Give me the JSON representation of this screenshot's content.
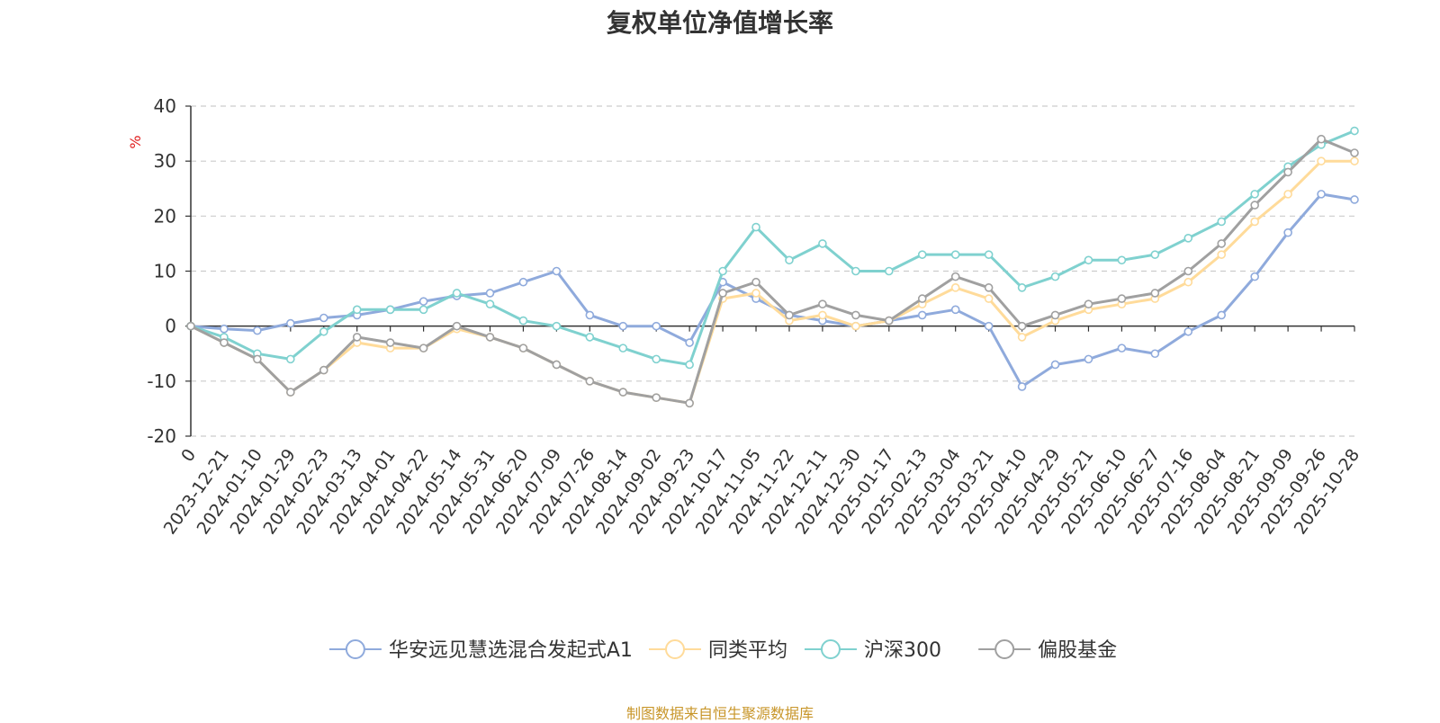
{
  "source_note": "制图数据来自恒生聚源数据库",
  "chart_data": {
    "type": "line",
    "title": "复权单位净值增长率",
    "ylabel": "%",
    "ylabel_color": "#e02020",
    "ylim": [
      -20,
      40
    ],
    "yticks": [
      -20,
      -10,
      0,
      10,
      20,
      30,
      40
    ],
    "grid": true,
    "legend_position": "bottom",
    "x_ticks": [
      "0",
      "2023-12-21",
      "2024-01-10",
      "2024-01-29",
      "2024-02-23",
      "2024-03-13",
      "2024-04-01",
      "2024-04-22",
      "2024-05-14",
      "2024-05-31",
      "2024-06-20",
      "2024-07-09",
      "2024-07-26",
      "2024-08-14",
      "2024-09-02",
      "2024-09-23",
      "2024-10-17",
      "2024-11-05",
      "2024-11-22",
      "2024-12-11",
      "2024-12-30",
      "2025-01-17",
      "2025-02-13",
      "2025-03-04",
      "2025-03-21",
      "2025-04-10",
      "2025-04-29",
      "2025-05-21",
      "2025-06-10",
      "2025-06-27",
      "2025-07-16",
      "2025-08-04",
      "2025-08-21",
      "2025-09-09",
      "2025-09-26",
      "2025-10-28"
    ],
    "series": [
      {
        "name": "华安远见慧选混合发起式A1",
        "color": "#8faadc",
        "values": [
          0,
          -0.5,
          -0.8,
          0.5,
          1.5,
          2,
          3,
          4.5,
          5.5,
          6,
          8,
          10,
          2,
          0,
          0,
          -3,
          8,
          5,
          2,
          1,
          0,
          1,
          2,
          3,
          0,
          -11,
          -7,
          -6,
          -4,
          -5,
          -1,
          2,
          9,
          17,
          24,
          23
        ]
      },
      {
        "name": "同类平均",
        "color": "#ffdb9a",
        "values": [
          0,
          -3,
          -6,
          -12,
          -8,
          -3,
          -4,
          -4,
          -0.5,
          -2,
          -4,
          -7,
          -10,
          -12,
          -13,
          -14,
          5,
          6,
          1,
          2,
          0,
          1,
          4,
          7,
          5,
          -2,
          1,
          3,
          4,
          5,
          8,
          13,
          19,
          24,
          30,
          30
        ]
      },
      {
        "name": "沪深300",
        "color": "#7fd1cf",
        "values": [
          0,
          -2,
          -5,
          -6,
          -1,
          3,
          3,
          3,
          6,
          4,
          1,
          0,
          -2,
          -4,
          -6,
          -7,
          10,
          18,
          12,
          15,
          10,
          10,
          13,
          13,
          13,
          7,
          9,
          12,
          12,
          13,
          16,
          19,
          24,
          29,
          33,
          35.5
        ]
      },
      {
        "name": "偏股基金",
        "color": "#a0a0a0",
        "values": [
          0,
          -3,
          -6,
          -12,
          -8,
          -2,
          -3,
          -4,
          0,
          -2,
          -4,
          -7,
          -10,
          -12,
          -13,
          -14,
          6,
          8,
          2,
          4,
          2,
          1,
          5,
          9,
          7,
          0,
          2,
          4,
          5,
          6,
          10,
          15,
          22,
          28,
          34,
          31.5
        ]
      }
    ]
  }
}
